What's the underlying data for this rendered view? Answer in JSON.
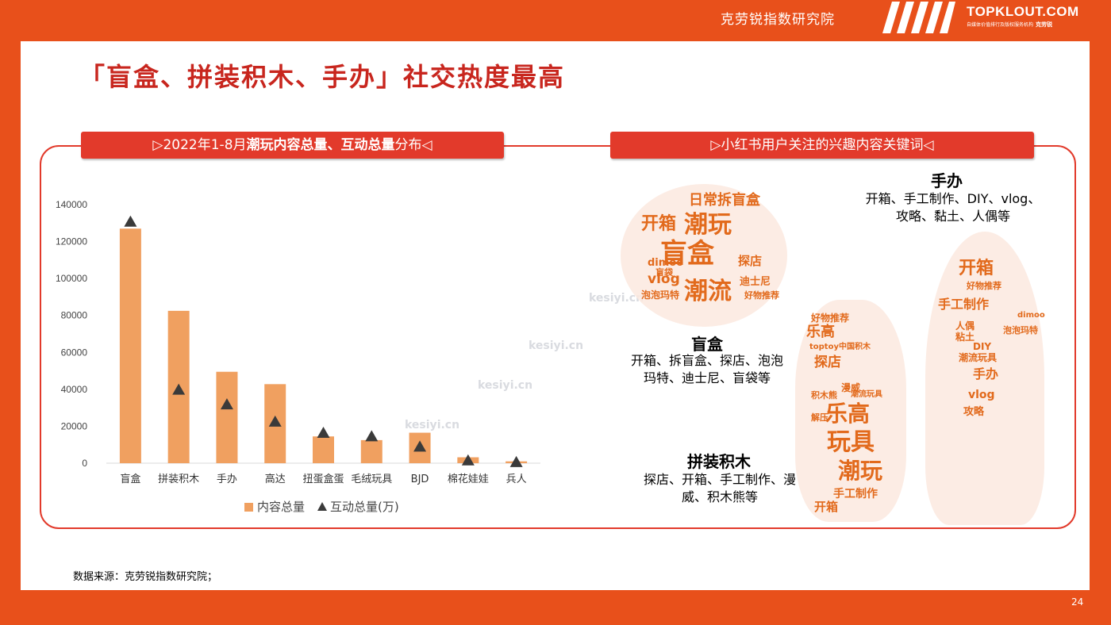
{
  "header": {
    "org": "克劳锐指数研究院",
    "brand": "TOPKLOUT.COM",
    "brand_sub": "自媒体价值排行及版权服务机构",
    "brand_sub_cn": "克劳锐"
  },
  "title": "「盲盒、拼装积木、手办」社交热度最高",
  "left_banner": {
    "prefix": "▷2022年1-8月",
    "bold": "潮玩内容总量、互动总量",
    "suffix": "分布◁"
  },
  "right_banner": "▷小红书用户关注的兴趣内容关键词◁",
  "chart_data": {
    "type": "bar",
    "categories": [
      "盲盒",
      "拼装积木",
      "手办",
      "高达",
      "扭蛋盒蛋",
      "毛绒玩具",
      "BJD",
      "棉花娃娃",
      "兵人"
    ],
    "series": [
      {
        "name": "内容总量",
        "type": "bar",
        "axis": "left",
        "values": [
          127000,
          82500,
          49500,
          42800,
          14500,
          12500,
          16500,
          3200,
          1000
        ]
      },
      {
        "name": "互动总量(万)",
        "type": "marker",
        "axis": "right",
        "values": [
          28000,
          8500,
          6800,
          4800,
          3500,
          3100,
          1900,
          300,
          100
        ]
      }
    ],
    "y_left": {
      "ylim": [
        0,
        140000
      ],
      "ticks": [
        "0",
        "20000",
        "40000",
        "60000",
        "80000",
        "100000",
        "120000",
        "140000"
      ]
    },
    "y_right": {
      "ylim": [
        0,
        30000
      ],
      "ticks": [
        "0",
        "5000",
        "10000",
        "15000",
        "20000",
        "25000",
        "30000"
      ]
    },
    "colors": {
      "bar": "#F0A060",
      "marker": "#3A3A3A"
    },
    "legend": "bottom",
    "grid": false
  },
  "keywords": [
    {
      "title": "手办",
      "text_lines": [
        "开箱、手工制作、DIY、vlog、",
        "攻略、黏土、人偶等"
      ]
    },
    {
      "title": "盲盒",
      "text_lines": [
        "开箱、拆盲盒、探店、泡泡",
        "玛特、迪士尼、盲袋等"
      ]
    },
    {
      "title": "拼装积木",
      "text_lines": [
        "探店、开箱、手工制作、漫",
        "威、积木熊等"
      ]
    }
  ],
  "clouds": {
    "blindbox": [
      "日常拆盲盒",
      "开箱",
      "潮玩",
      "盲盒",
      "探店",
      "dimoo",
      "vlog",
      "潮流",
      "迪士尼",
      "泡泡玛特",
      "好物推荐",
      "盲袋"
    ],
    "lego": [
      "好物推荐",
      "乐高",
      "toptoy中国积木",
      "探店",
      "积木熊",
      "漫威",
      "解压",
      "乐高",
      "玩具",
      "潮玩",
      "手工制作",
      "开箱",
      "潮流玩具"
    ],
    "figure": [
      "开箱",
      "好物推荐",
      "手工制作",
      "人偶",
      "粘土",
      "DIY",
      "潮流玩具",
      "泡泡玛特",
      "手办",
      "vlog",
      "攻略",
      "dimoo"
    ]
  },
  "watermark": "kesiyi.cn",
  "source": "数据来源：克劳锐指数研究院；",
  "page_number": "24"
}
